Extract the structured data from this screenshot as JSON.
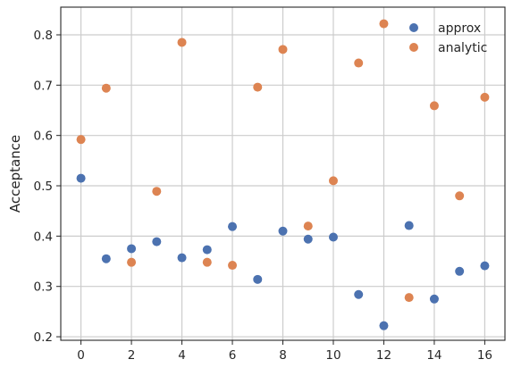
{
  "chart_data": {
    "type": "scatter",
    "ylabel": "Acceptance",
    "xlim": [
      -0.8,
      16.8
    ],
    "ylim": [
      0.193,
      0.855
    ],
    "xticks": [
      0,
      2,
      4,
      6,
      8,
      10,
      12,
      14,
      16
    ],
    "yticks": [
      0.2,
      0.3,
      0.4,
      0.5,
      0.6,
      0.7,
      0.8
    ],
    "grid": true,
    "legend_position": "top-right",
    "series": [
      {
        "name": "approx",
        "color": "#4c72b0",
        "x": [
          0,
          1,
          2,
          3,
          4,
          5,
          6,
          7,
          8,
          9,
          10,
          11,
          12,
          13,
          14,
          15,
          16
        ],
        "y": [
          0.515,
          0.355,
          0.375,
          0.389,
          0.357,
          0.373,
          0.419,
          0.314,
          0.41,
          0.394,
          0.398,
          0.284,
          0.222,
          0.421,
          0.275,
          0.33,
          0.341
        ]
      },
      {
        "name": "analytic",
        "color": "#dd8452",
        "x": [
          0,
          1,
          2,
          3,
          4,
          5,
          6,
          7,
          8,
          9,
          10,
          11,
          12,
          13,
          14,
          15,
          16
        ],
        "y": [
          0.592,
          0.694,
          0.348,
          0.489,
          0.785,
          0.348,
          0.342,
          0.696,
          0.771,
          0.42,
          0.51,
          0.744,
          0.822,
          0.278,
          0.659,
          0.48,
          0.676
        ]
      }
    ]
  }
}
